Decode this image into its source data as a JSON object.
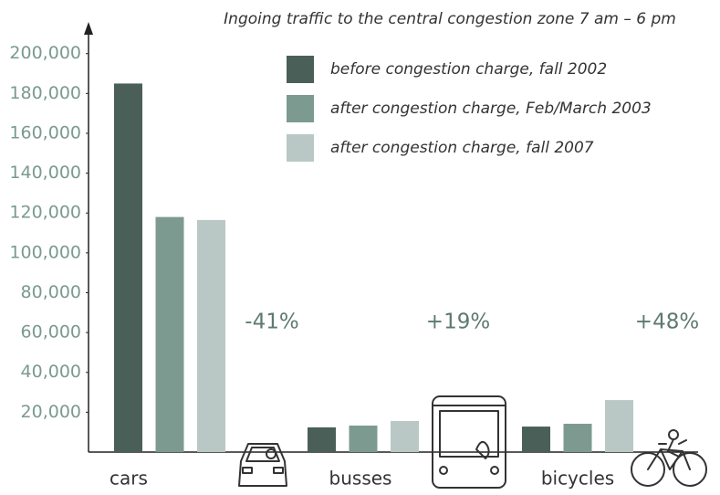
{
  "chart_data": {
    "type": "bar",
    "title": "Ingoing traffic to the central congestion zone 7 am – 6 pm",
    "categories": [
      "cars",
      "busses",
      "bicycles"
    ],
    "series": [
      {
        "name": "before congestion charge, fall 2002",
        "color": "#4a5f58",
        "values": [
          185000,
          12400,
          12800
        ]
      },
      {
        "name": "after congestion charge, Feb/March 2003",
        "color": "#7d9a90",
        "values": [
          118000,
          13300,
          14200
        ]
      },
      {
        "name": "after congestion charge, fall 2007",
        "color": "#b9c8c5",
        "values": [
          116500,
          15600,
          26100
        ]
      }
    ],
    "annotations": [
      "-41%",
      "+19%",
      "+48%"
    ],
    "ylim": [
      0,
      215000
    ],
    "yticks": [
      {
        "value": 20000,
        "label": "20,000"
      },
      {
        "value": 40000,
        "label": "40,000"
      },
      {
        "value": 60000,
        "label": "60,000"
      },
      {
        "value": 80000,
        "label": "80,000"
      },
      {
        "value": 100000,
        "label": "100,000"
      },
      {
        "value": 120000,
        "label": "120,000"
      },
      {
        "value": 140000,
        "label": "140,000"
      },
      {
        "value": 160000,
        "label": "160,000"
      },
      {
        "value": 180000,
        "label": "180,000"
      },
      {
        "value": 200000,
        "label": "200,000"
      }
    ],
    "grid": false
  }
}
